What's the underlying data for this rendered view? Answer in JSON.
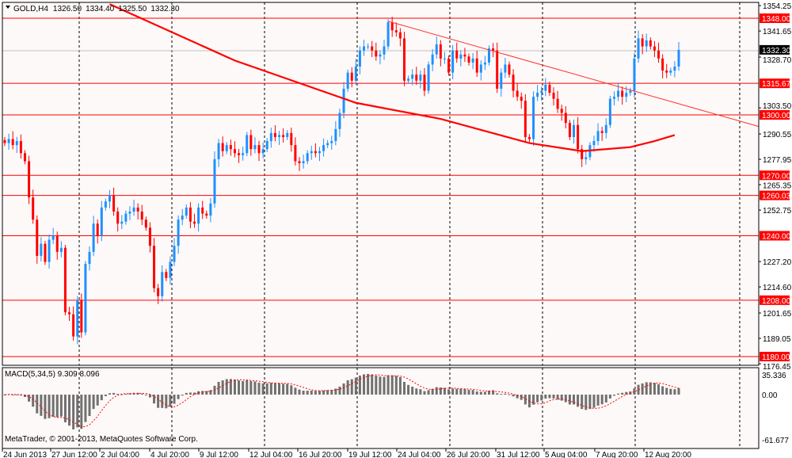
{
  "header": {
    "symbol": "GOLD,H4",
    "open": "1326.50",
    "high": "1334.40",
    "low": "1325.50",
    "close": "1332.30",
    "icon": "triangle-down-icon"
  },
  "indicator": {
    "label": "MACD(5,34,5) 9.309 8.096",
    "axis_top": "35.336",
    "axis_zero": "0.00",
    "axis_bottom": "-61.677"
  },
  "copyright": "MetaTrader, © 2001-2013, MetaQuotes Software Corp.",
  "colors": {
    "background": "#fdf9f8",
    "bull": "#1e90ff",
    "bear": "#ff0000",
    "levels": "#ff0000",
    "macd_bars": "#707070",
    "signal": "#ff0000"
  },
  "chart_data": {
    "type": "candlestick",
    "symbol": "GOLD",
    "timeframe": "H4",
    "current_price": "1332.30",
    "price_axis_labels": [
      "1354.25",
      "1341.65",
      "1328.70",
      "1303.50",
      "1290.55",
      "1277.95",
      "1265.35",
      "1252.75",
      "1227.20",
      "1214.60",
      "1201.65",
      "1189.05",
      "1176.45"
    ],
    "horizontal_levels": [
      "1348.00",
      "1315.67",
      "1300.00",
      "1270.00",
      "1260.03",
      "1240.00",
      "1208.00",
      "1180.00"
    ],
    "time_axis_labels": [
      "24 Jun 2013",
      "27 Jun 12:00",
      "2 Jul 04:00",
      "4 Jul 20:00",
      "9 Jul 12:00",
      "12 Jul 04:00",
      "16 Jul 20:00",
      "19 Jul 12:00",
      "24 Jul 04:00",
      "26 Jul 20:00",
      "31 Jul 12:00",
      "5 Aug 04:00",
      "7 Aug 20:00",
      "12 Aug 20:00"
    ],
    "ylim": [
      1176.45,
      1354.25
    ],
    "closes": [
      1286,
      1288,
      1285,
      1287,
      1281,
      1277,
      1259,
      1248,
      1230,
      1236,
      1227,
      1238,
      1240,
      1232,
      1234,
      1202,
      1201,
      1190,
      1208,
      1192,
      1226,
      1232,
      1246,
      1240,
      1254,
      1257,
      1260,
      1252,
      1246,
      1247,
      1251,
      1252,
      1254,
      1252,
      1248,
      1244,
      1235,
      1214,
      1210,
      1222,
      1219,
      1227,
      1235,
      1248,
      1250,
      1254,
      1247,
      1246,
      1254,
      1251,
      1250,
      1256,
      1278,
      1286,
      1282,
      1285,
      1283,
      1281,
      1280,
      1281,
      1290,
      1283,
      1285,
      1281,
      1283,
      1287,
      1291,
      1289,
      1290,
      1289,
      1291,
      1285,
      1277,
      1276,
      1277,
      1281,
      1282,
      1281,
      1282,
      1285,
      1286,
      1287,
      1293,
      1301,
      1313,
      1321,
      1317,
      1324,
      1332,
      1334,
      1334,
      1332,
      1329,
      1330,
      1334,
      1346,
      1342,
      1341,
      1338,
      1317,
      1318,
      1320,
      1317,
      1320,
      1312,
      1325,
      1330,
      1335,
      1328,
      1328,
      1321,
      1332,
      1328,
      1330,
      1329,
      1326,
      1328,
      1321,
      1325,
      1326,
      1333,
      1332,
      1313,
      1321,
      1325,
      1320,
      1312,
      1309,
      1307,
      1289,
      1288,
      1309,
      1311,
      1312,
      1315,
      1311,
      1308,
      1303,
      1301,
      1296,
      1289,
      1295,
      1283,
      1278,
      1279,
      1285,
      1287,
      1292,
      1291,
      1295,
      1308,
      1309,
      1312,
      1309,
      1311,
      1312,
      1328,
      1338,
      1334,
      1337,
      1334,
      1332,
      1328,
      1322,
      1321,
      1322,
      1324,
      1332.3
    ],
    "moving_average": [
      [
        26,
        1355
      ],
      [
        57,
        1327
      ],
      [
        87,
        1306
      ],
      [
        108,
        1298
      ],
      [
        130,
        1286
      ],
      [
        143,
        1282
      ],
      [
        155,
        1284
      ],
      [
        161,
        1287
      ],
      [
        166,
        1290
      ]
    ],
    "trendline": [
      [
        95,
        1346.5
      ],
      [
        166,
        1306.1
      ]
    ],
    "macd": {
      "fast": 5,
      "slow": 34,
      "signal": 5,
      "main": 9.309,
      "signal_value": 8.096,
      "ylim": [
        -61.677,
        35.336
      ]
    }
  }
}
